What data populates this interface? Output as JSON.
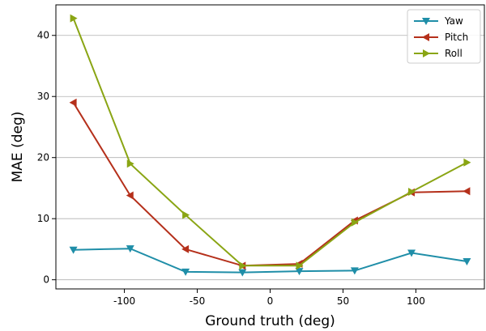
{
  "chart_data": {
    "type": "line",
    "xlabel": "Ground truth (deg)",
    "ylabel": "MAE (deg)",
    "xlim": [
      -147,
      147
    ],
    "ylim": [
      -1.5,
      45
    ],
    "xticks": [
      -100,
      -50,
      0,
      50,
      100
    ],
    "yticks": [
      0,
      10,
      20,
      30,
      40
    ],
    "grid": "horizontal",
    "legend_position": "top-right",
    "x": [
      -135,
      -96,
      -58,
      -19,
      20,
      58,
      97,
      135
    ],
    "series": [
      {
        "name": "Yaw",
        "color": "#1f8ea8",
        "marker": "triangle-down",
        "values": [
          4.9,
          5.1,
          1.3,
          1.2,
          1.4,
          1.5,
          4.4,
          3.0
        ]
      },
      {
        "name": "Pitch",
        "color": "#b5301b",
        "marker": "triangle-left",
        "values": [
          29.0,
          13.8,
          5.0,
          2.3,
          2.6,
          9.7,
          14.3,
          14.5
        ]
      },
      {
        "name": "Roll",
        "color": "#8aa514",
        "marker": "triangle-right",
        "values": [
          42.8,
          19.0,
          10.6,
          2.3,
          2.3,
          9.4,
          14.4,
          19.2
        ]
      }
    ]
  }
}
